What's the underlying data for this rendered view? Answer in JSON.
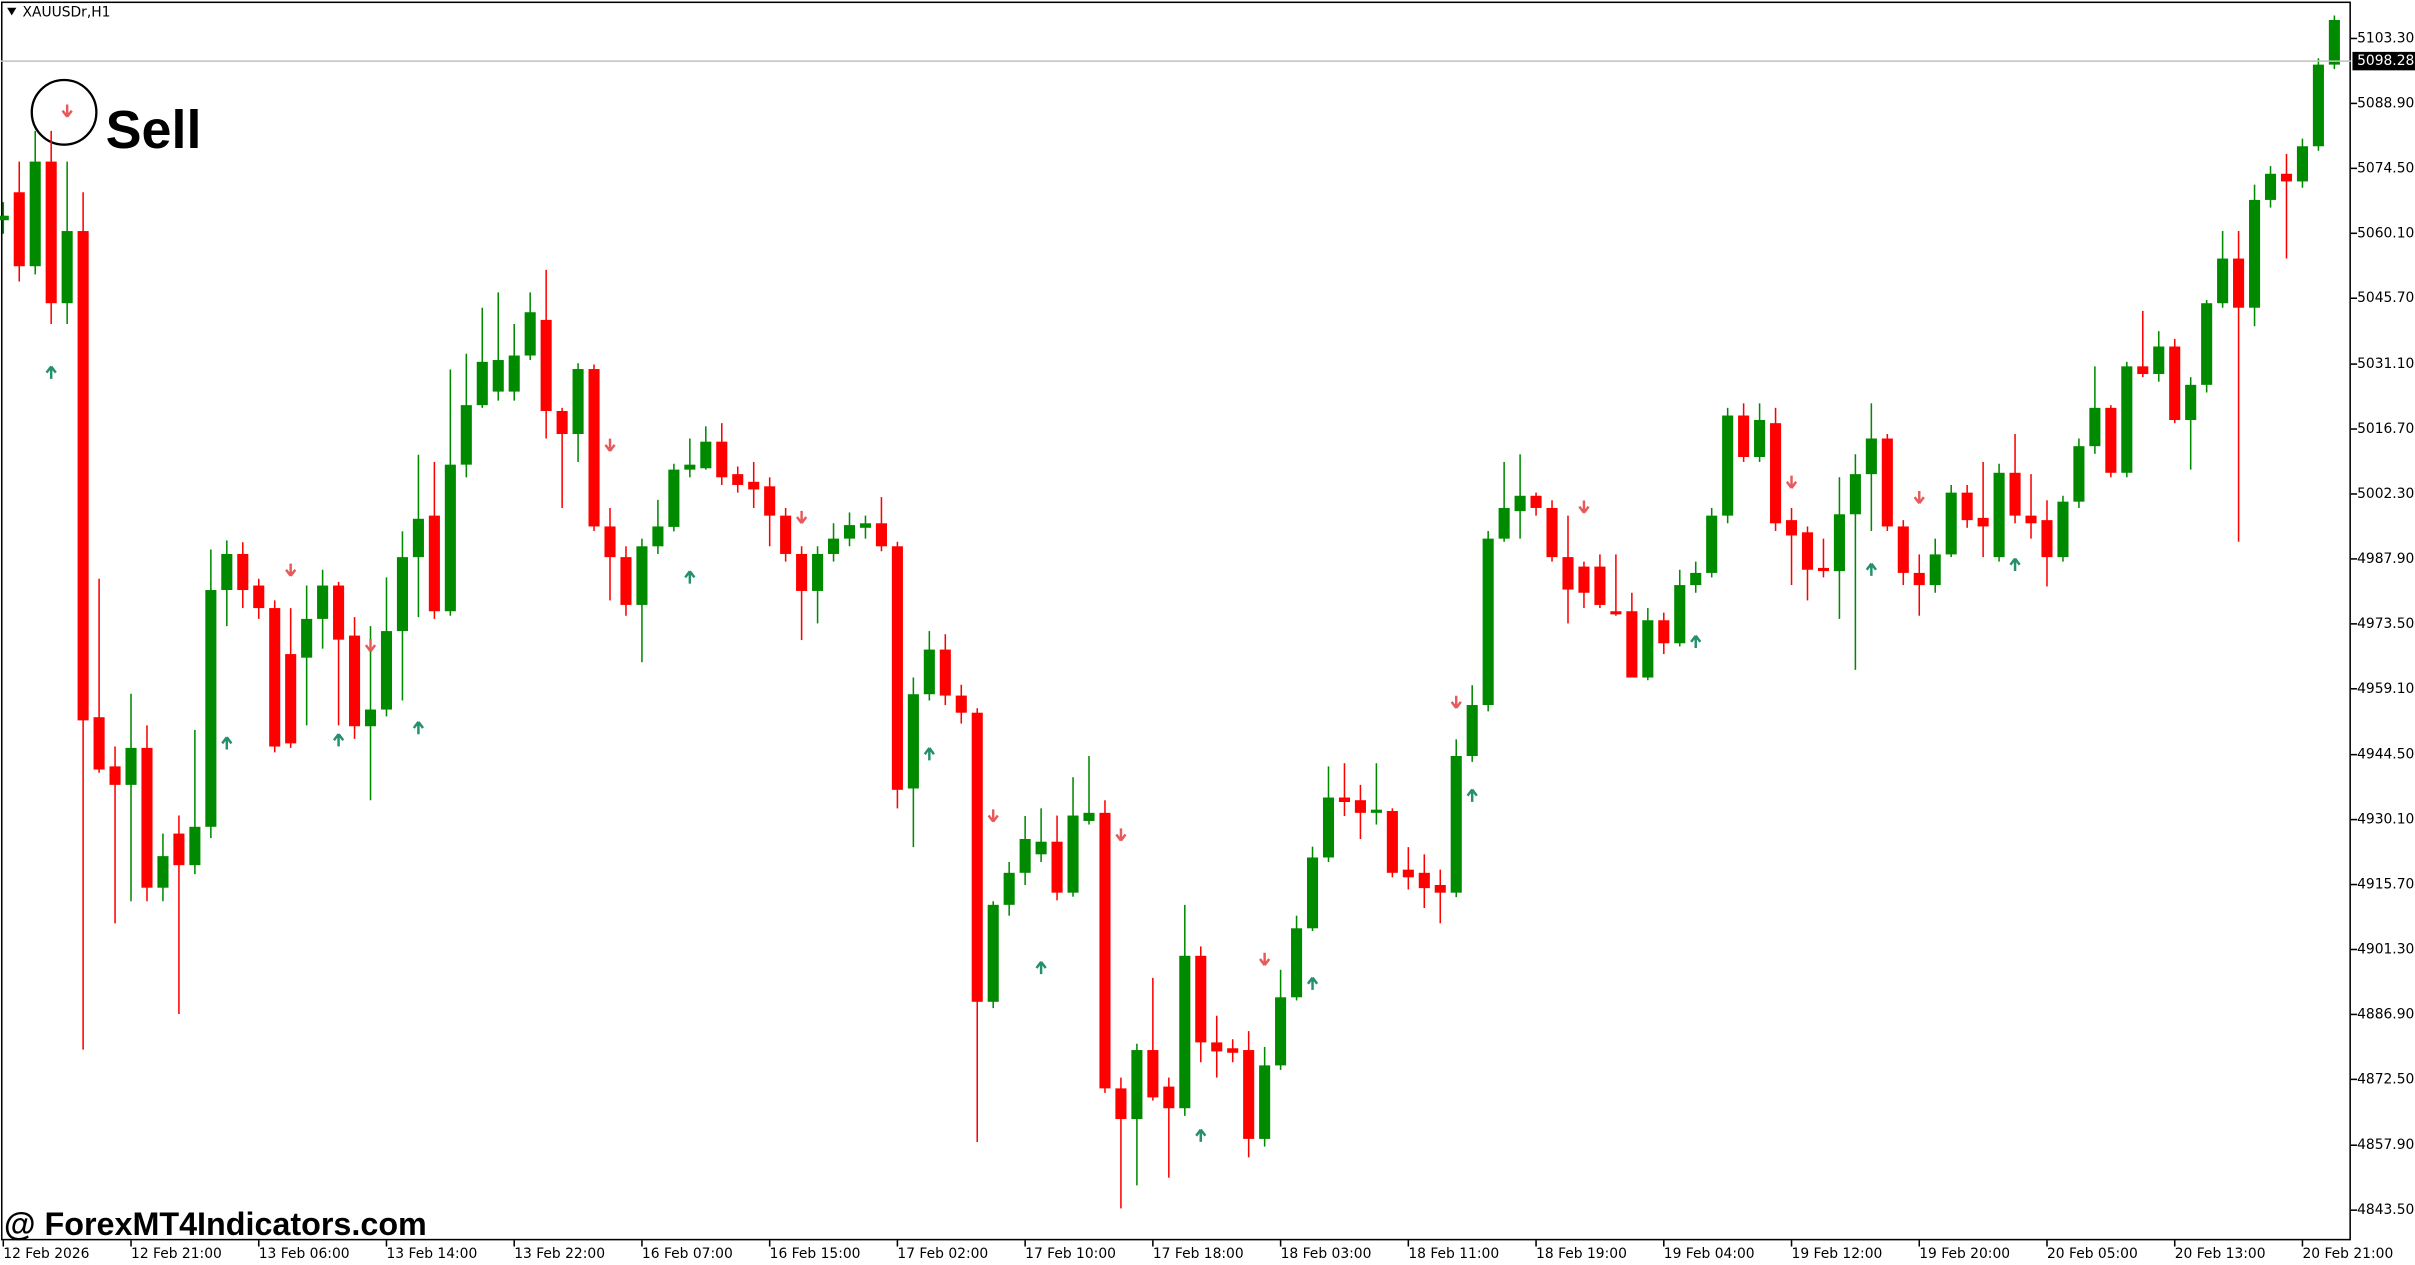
{
  "chart_data": {
    "type": "candlestick",
    "symbol": "XAUUSDr,H1",
    "annotation": "Sell",
    "watermark": "@ ForexMT4Indicators.com",
    "up_color": "#008a00",
    "down_color": "#ff0000",
    "current_price": 5098.28,
    "ylim": [
      4836.8,
      5111.83
    ],
    "yticks": [
      {
        "value": 5103.3,
        "label": "5103.30"
      },
      {
        "value": 5088.9,
        "label": "5088.90"
      },
      {
        "value": 5074.5,
        "label": "5074.50"
      },
      {
        "value": 5060.1,
        "label": "5060.10"
      },
      {
        "value": 5045.7,
        "label": "5045.70"
      },
      {
        "value": 5031.1,
        "label": "5031.10"
      },
      {
        "value": 5016.7,
        "label": "5016.70"
      },
      {
        "value": 5002.3,
        "label": "5002.30"
      },
      {
        "value": 4987.9,
        "label": "4987.90"
      },
      {
        "value": 4973.5,
        "label": "4973.50"
      },
      {
        "value": 4959.1,
        "label": "4959.10"
      },
      {
        "value": 4944.5,
        "label": "4944.50"
      },
      {
        "value": 4930.1,
        "label": "4930.10"
      },
      {
        "value": 4915.7,
        "label": "4915.70"
      },
      {
        "value": 4901.3,
        "label": "4901.30"
      },
      {
        "value": 4886.9,
        "label": "4886.90"
      },
      {
        "value": 4872.5,
        "label": "4872.50"
      },
      {
        "value": 4857.9,
        "label": "4857.90"
      },
      {
        "value": 4843.5,
        "label": "4843.50"
      }
    ],
    "categories": [
      "12 Feb 2026",
      null,
      null,
      null,
      null,
      null,
      null,
      null,
      "12 Feb 21:00",
      null,
      null,
      null,
      null,
      null,
      null,
      null,
      "13 Feb 06:00",
      null,
      null,
      null,
      null,
      null,
      null,
      null,
      "13 Feb 14:00",
      null,
      null,
      null,
      null,
      null,
      null,
      null,
      "13 Feb 22:00",
      null,
      null,
      null,
      null,
      null,
      null,
      null,
      "16 Feb 07:00",
      null,
      null,
      null,
      null,
      null,
      null,
      null,
      "16 Feb 15:00",
      null,
      null,
      null,
      null,
      null,
      null,
      null,
      "17 Feb 02:00",
      null,
      null,
      null,
      null,
      null,
      null,
      null,
      "17 Feb 10:00",
      null,
      null,
      null,
      null,
      null,
      null,
      null,
      "17 Feb 18:00",
      null,
      null,
      null,
      null,
      null,
      null,
      null,
      "18 Feb 03:00",
      null,
      null,
      null,
      null,
      null,
      null,
      null,
      "18 Feb 11:00",
      null,
      null,
      null,
      null,
      null,
      null,
      null,
      "18 Feb 19:00",
      null,
      null,
      null,
      null,
      null,
      null,
      null,
      "19 Feb 04:00",
      null,
      null,
      null,
      null,
      null,
      null,
      null,
      "19 Feb 12:00",
      null,
      null,
      null,
      null,
      null,
      null,
      null,
      "19 Feb 20:00",
      null,
      null,
      null,
      null,
      null,
      null,
      null,
      "20 Feb 05:00",
      null,
      null,
      null,
      null,
      null,
      null,
      null,
      "20 Feb 13:00",
      null,
      null,
      null,
      null,
      null,
      null,
      null,
      "20 Feb 21:00",
      null,
      null
    ],
    "ohlc": [
      [
        5063,
        5067,
        5060,
        5064
      ],
      [
        5069.2,
        5076,
        5049.4,
        5052.8
      ],
      [
        5052.8,
        5082.8,
        5051,
        5076
      ],
      [
        5076,
        5082.8,
        5040,
        5044.6
      ],
      [
        5044.6,
        5076,
        5040,
        5060.6
      ],
      [
        5060.6,
        5069.2,
        4879.1,
        4952.1
      ],
      [
        4952.8,
        4983.5,
        4940.5,
        4941.2
      ],
      [
        4941.9,
        4946.3,
        4907.1,
        4937.8
      ],
      [
        4937.8,
        4958,
        4912,
        4946
      ],
      [
        4946,
        4951,
        4912,
        4915
      ],
      [
        4915,
        4927,
        4912,
        4922
      ],
      [
        4927,
        4931,
        4887,
        4920
      ],
      [
        4920,
        4950,
        4918,
        4928.5
      ],
      [
        4928.5,
        4990,
        4926,
        4981
      ],
      [
        4981,
        4992,
        4973,
        4989
      ],
      [
        4989,
        4991.6,
        4977,
        4981
      ],
      [
        4982,
        4983.5,
        4974.6,
        4977
      ],
      [
        4977,
        4978.7,
        4945,
        4946.3
      ],
      [
        4966.8,
        4977,
        4946,
        4947
      ],
      [
        4966,
        4982,
        4951,
        4974.6
      ],
      [
        4974.6,
        4985.5,
        4968,
        4982
      ],
      [
        4982,
        4982.8,
        4951,
        4970
      ],
      [
        4970.9,
        4975,
        4948,
        4950.8
      ],
      [
        4950.8,
        4973,
        4934.4,
        4954.5
      ],
      [
        4954.5,
        4983.8,
        4953,
        4971.9
      ],
      [
        4971.9,
        4994,
        4956.5,
        4988.3
      ],
      [
        4988.3,
        5011,
        4975,
        4996.8
      ],
      [
        4997.5,
        5009.4,
        4974.6,
        4976.3
      ],
      [
        4976.3,
        5029.9,
        4975.3,
        5008.8
      ],
      [
        5008.8,
        5033.4,
        5006,
        5022
      ],
      [
        5022,
        5043.6,
        5021.4,
        5031.6
      ],
      [
        5025,
        5047,
        5023,
        5032
      ],
      [
        5025,
        5040,
        5023,
        5033
      ],
      [
        5033,
        5047,
        5032,
        5042.6
      ],
      [
        5040.9,
        5052,
        5014.6,
        5020.7
      ],
      [
        5020.7,
        5021.4,
        4999.2,
        5015.6
      ],
      [
        5015.6,
        5031.3,
        5009.4,
        5030
      ],
      [
        5030,
        5031,
        4994.1,
        4995.1
      ],
      [
        4995.1,
        4999.2,
        4978.7,
        4988.3
      ],
      [
        4988.3,
        4990.7,
        4975.3,
        4977.7
      ],
      [
        4977.7,
        4992.4,
        4965,
        4990.7
      ],
      [
        4990.7,
        5001,
        4989,
        4995.1
      ],
      [
        4995,
        5009,
        4994,
        5007.7
      ],
      [
        5007.7,
        5014.6,
        5006,
        5008.8
      ],
      [
        5008,
        5017.3,
        5007.7,
        5013.9
      ],
      [
        5013.9,
        5018,
        5004.3,
        5006
      ],
      [
        5006.7,
        5008.4,
        5002.6,
        5004.3
      ],
      [
        5005,
        5009.4,
        4999.2,
        5003.3
      ],
      [
        5004,
        5006,
        4990.7,
        4997.5
      ],
      [
        4997.5,
        4999.2,
        4987.3,
        4989
      ],
      [
        4989,
        4990.7,
        4969.9,
        4980.8
      ],
      [
        4980.8,
        4990.7,
        4973.6,
        4989
      ],
      [
        4989,
        4995.8,
        4987.3,
        4992.4
      ],
      [
        4992.4,
        4998.2,
        4990.7,
        4995.4
      ],
      [
        4994.8,
        4997.5,
        4992.4,
        4995.8
      ],
      [
        4995.8,
        5001.6,
        4989.6,
        4990.7
      ],
      [
        4990.7,
        4991.7,
        4932.6,
        4936.7
      ],
      [
        4937,
        4961.6,
        4924,
        4957.9
      ],
      [
        4957.9,
        4971.9,
        4956.5,
        4967.8
      ],
      [
        4967.8,
        4971.2,
        4955.5,
        4957.6
      ],
      [
        4957.6,
        4960,
        4951.4,
        4953.8
      ],
      [
        4953.8,
        4954.8,
        4858.6,
        4889.7
      ],
      [
        4889.7,
        4912,
        4888.3,
        4911.2
      ],
      [
        4911.2,
        4920.7,
        4908.8,
        4918.3
      ],
      [
        4918.3,
        4930.9,
        4915.6,
        4925.8
      ],
      [
        4922.4,
        4932.6,
        4920.7,
        4925.2
      ],
      [
        4925.2,
        4931,
        4912.2,
        4913.9
      ],
      [
        4913.9,
        4939.5,
        4913,
        4931
      ],
      [
        4929.8,
        4944.2,
        4929,
        4931.6
      ],
      [
        4931.6,
        4934.4,
        4869.5,
        4870.5
      ],
      [
        4870.5,
        4872.9,
        4843.9,
        4863.7
      ],
      [
        4863.7,
        4880.4,
        4849,
        4879
      ],
      [
        4879,
        4895,
        4867.8,
        4868.5
      ],
      [
        4870.9,
        4872.9,
        4850.7,
        4866.1
      ],
      [
        4866.1,
        4911.2,
        4864.4,
        4899.9
      ],
      [
        4899.9,
        4902,
        4876.3,
        4880.7
      ],
      [
        4880.7,
        4886.6,
        4872.9,
        4878.7
      ],
      [
        4879.4,
        4881.4,
        4876.3,
        4878.4
      ],
      [
        4879,
        4883.2,
        4855.2,
        4859.3
      ],
      [
        4859.3,
        4879.7,
        4857.6,
        4875.6
      ],
      [
        4875.6,
        4896.8,
        4874.6,
        4890.7
      ],
      [
        4890.7,
        4908.8,
        4890,
        4906
      ],
      [
        4906,
        4924.1,
        4905.4,
        4921.7
      ],
      [
        4921.7,
        4941.9,
        4920.7,
        4935
      ],
      [
        4935,
        4942.6,
        4930.9,
        4934
      ],
      [
        4934.4,
        4937.8,
        4925.8,
        4931.6
      ],
      [
        4931.6,
        4942.6,
        4929,
        4932.3
      ],
      [
        4932,
        4932.6,
        4917.3,
        4918.3
      ],
      [
        4919,
        4924,
        4914.6,
        4917.3
      ],
      [
        4918.3,
        4922.4,
        4910.5,
        4914.9
      ],
      [
        4915.6,
        4919,
        4907.1,
        4913.9
      ],
      [
        4913.9,
        4947.9,
        4912.9,
        4944.2
      ],
      [
        4944.2,
        4959.9,
        4942.9,
        4955.5
      ],
      [
        4955.5,
        4994.1,
        4954.1,
        4992.4
      ],
      [
        4992.4,
        5009.4,
        4991.7,
        4999.2
      ],
      [
        4998.5,
        5011.1,
        4992.4,
        5001.9
      ],
      [
        5001.9,
        5002.6,
        4997.5,
        4999.2
      ],
      [
        4999.2,
        5000.9,
        4987.3,
        4988.3
      ],
      [
        4988.3,
        4997.5,
        4973.6,
        4981.1
      ],
      [
        4986.2,
        4987.3,
        4977,
        4980.4
      ],
      [
        4986.2,
        4988.9,
        4977,
        4977.7
      ],
      [
        4976.3,
        4988.9,
        4975.3,
        4975.6
      ],
      [
        4976.3,
        4980.4,
        4961.6,
        4961.6
      ],
      [
        4961.6,
        4977,
        4961,
        4974.3
      ],
      [
        4974.3,
        4976,
        4966.8,
        4969.2
      ],
      [
        4969.2,
        4985.5,
        4968.5,
        4982.1
      ],
      [
        4982.1,
        4987.3,
        4980.4,
        4984.8
      ],
      [
        4984.8,
        4999.2,
        4983.8,
        4997.5
      ],
      [
        4997.5,
        5021.4,
        4995.8,
        5019.7
      ],
      [
        5019.7,
        5022.4,
        5009.4,
        5010.5
      ],
      [
        5010.5,
        5022.4,
        5009.4,
        5018.7
      ],
      [
        5018,
        5021.4,
        4994.1,
        4995.8
      ],
      [
        4996.5,
        4999.2,
        4982.1,
        4993.1
      ],
      [
        4993.8,
        4995.1,
        4978.7,
        4985.5
      ],
      [
        4985.9,
        4992.4,
        4983.8,
        4985.2
      ],
      [
        4985.2,
        5006,
        4974.6,
        4997.8
      ],
      [
        4997.8,
        5011.1,
        4963.3,
        5006.7
      ],
      [
        5006.7,
        5022.4,
        4994.1,
        5014.6
      ],
      [
        5014.6,
        5015.6,
        4994.1,
        4995.1
      ],
      [
        4995.1,
        4996.5,
        4982.1,
        4984.8
      ],
      [
        4984.8,
        4988.9,
        4975.3,
        4982.1
      ],
      [
        4982.1,
        4992.4,
        4980.4,
        4988.9
      ],
      [
        4988.9,
        5004.3,
        4988.3,
        5002.6
      ],
      [
        5002.6,
        5004.3,
        4994.8,
        4996.5
      ],
      [
        4997,
        5009.4,
        4988.3,
        4995.1
      ],
      [
        4988.3,
        5009,
        4987.3,
        5007
      ],
      [
        5007,
        5015.6,
        4995.8,
        4997.5
      ],
      [
        4997.5,
        5006.7,
        4992.4,
        4995.8
      ],
      [
        4996.5,
        5000.9,
        4981.8,
        4988.3
      ],
      [
        4988.3,
        5001.9,
        4987.3,
        5000.6
      ],
      [
        5000.6,
        5014.6,
        4999.2,
        5012.9
      ],
      [
        5012.9,
        5030.6,
        5011.2,
        5021.4
      ],
      [
        5021.4,
        5022,
        5006,
        5007
      ],
      [
        5007,
        5031.6,
        5006,
        5030.6
      ],
      [
        5030.6,
        5042.9,
        5028.2,
        5028.9
      ],
      [
        5028.9,
        5038.4,
        5027.2,
        5035
      ],
      [
        5035,
        5036.7,
        5018,
        5018.7
      ],
      [
        5018.7,
        5028.2,
        5007.7,
        5026.5
      ],
      [
        5026.5,
        5045.3,
        5024.8,
        5044.6
      ],
      [
        5044.6,
        5060.6,
        5043.6,
        5054.5
      ],
      [
        5054.5,
        5060.6,
        4991.7,
        5043.6
      ],
      [
        5043.6,
        5070.9,
        5039.5,
        5067.5
      ],
      [
        5067.5,
        5075,
        5065.8,
        5073.3
      ],
      [
        5073.3,
        5077.7,
        5054.5,
        5071.6
      ],
      [
        5071.6,
        5081.1,
        5070.2,
        5079.4
      ],
      [
        5079.4,
        5098.9,
        5078.4,
        5097.5
      ],
      [
        5097.5,
        5108.4,
        5096.5,
        5107.4
      ]
    ],
    "buy_signals": {
      "color": "#24906c",
      "values": [
        null,
        null,
        null,
        5029.2,
        null,
        null,
        null,
        null,
        null,
        null,
        null,
        null,
        null,
        null,
        4947,
        null,
        null,
        null,
        null,
        null,
        null,
        4947.7,
        null,
        null,
        null,
        null,
        4950.4,
        null,
        null,
        null,
        null,
        null,
        null,
        null,
        null,
        null,
        null,
        null,
        null,
        null,
        null,
        null,
        null,
        4983.8,
        null,
        null,
        null,
        null,
        null,
        null,
        null,
        null,
        null,
        null,
        null,
        null,
        null,
        null,
        4944.6,
        null,
        null,
        null,
        null,
        null,
        null,
        4897.2,
        null,
        null,
        null,
        null,
        null,
        null,
        null,
        null,
        null,
        4860,
        null,
        null,
        null,
        null,
        null,
        null,
        4893.7,
        null,
        null,
        null,
        null,
        null,
        null,
        null,
        null,
        null,
        4935.4,
        null,
        null,
        null,
        null,
        null,
        null,
        null,
        null,
        null,
        null,
        null,
        null,
        null,
        4969.5,
        null,
        null,
        null,
        null,
        null,
        null,
        null,
        null,
        null,
        null,
        4985.5,
        null,
        null,
        null,
        null,
        null,
        null,
        null,
        null,
        4986.6,
        null,
        null,
        null,
        null,
        null,
        null,
        null,
        null,
        null,
        null,
        null,
        null,
        null,
        null,
        null,
        null,
        null,
        null,
        null,
        null
      ]
    },
    "sell_signals": {
      "color": "#e85a5a",
      "values": [
        null,
        null,
        null,
        null,
        5087.3,
        null,
        null,
        null,
        null,
        null,
        null,
        null,
        null,
        null,
        null,
        null,
        null,
        null,
        4985.5,
        null,
        null,
        null,
        null,
        4968.8,
        null,
        null,
        null,
        null,
        null,
        null,
        null,
        null,
        null,
        null,
        null,
        null,
        null,
        null,
        5013.2,
        null,
        null,
        null,
        null,
        null,
        null,
        null,
        null,
        null,
        null,
        null,
        4997.2,
        null,
        null,
        null,
        null,
        null,
        null,
        null,
        null,
        null,
        null,
        null,
        4931,
        null,
        null,
        null,
        null,
        null,
        null,
        null,
        4926.8,
        null,
        null,
        null,
        null,
        null,
        null,
        null,
        null,
        4899.2,
        null,
        null,
        null,
        null,
        null,
        null,
        null,
        null,
        null,
        null,
        null,
        4956.2,
        null,
        null,
        null,
        null,
        null,
        null,
        null,
        4999.5,
        null,
        null,
        null,
        null,
        null,
        null,
        null,
        null,
        null,
        null,
        null,
        null,
        5005,
        null,
        null,
        null,
        null,
        null,
        null,
        null,
        5001.6,
        null,
        null,
        null,
        null,
        null,
        null,
        null,
        null,
        null,
        null,
        null,
        null,
        null,
        null,
        null,
        null,
        null,
        null,
        null,
        null,
        null,
        null,
        null,
        null,
        null,
        null
      ]
    }
  }
}
